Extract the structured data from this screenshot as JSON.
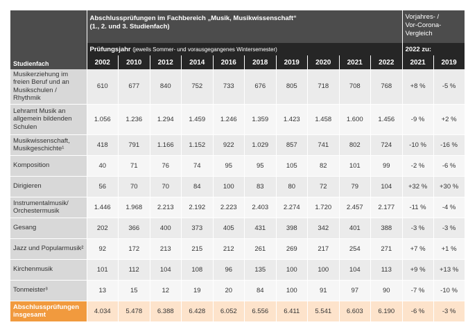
{
  "header": {
    "title": "Abschlussprüfungen im Fachbereich „Musik, Musikwissenschaft“",
    "subtitle": "(1., 2. und 3. Studienfach)",
    "comparison_title": "Vorjahres- / Vor-Corona-Vergleich",
    "year_label": "Prüfungsjahr",
    "year_note": "(jeweils Sommer- und vorausgegangenes Wintersemester)",
    "comparison_label": "2022 zu:",
    "row_header": "Studienfach",
    "years": [
      "2002",
      "2010",
      "2012",
      "2014",
      "2016",
      "2018",
      "2019",
      "2020",
      "2021",
      "2022"
    ],
    "comparison_years": [
      "2021",
      "2019"
    ]
  },
  "table": {
    "rows": [
      {
        "label": "Musikerziehung im freien Beruf und an Musikschulen / Rhythmik",
        "values": [
          "610",
          "677",
          "840",
          "752",
          "733",
          "676",
          "805",
          "718",
          "708",
          "768"
        ],
        "comparison": [
          "+8 %",
          "-5 %"
        ]
      },
      {
        "label": "Lehramt Musik an allgemein bildenden Schulen",
        "values": [
          "1.056",
          "1.236",
          "1.294",
          "1.459",
          "1.246",
          "1.359",
          "1.423",
          "1.458",
          "1.600",
          "1.456"
        ],
        "comparison": [
          "-9 %",
          "+2 %"
        ]
      },
      {
        "label": "Musikwissenschaft, Musikgeschichte¹",
        "values": [
          "418",
          "791",
          "1.166",
          "1.152",
          "922",
          "1.029",
          "857",
          "741",
          "802",
          "724"
        ],
        "comparison": [
          "-10 %",
          "-16 %"
        ]
      },
      {
        "label": "Komposition",
        "values": [
          "40",
          "71",
          "76",
          "74",
          "95",
          "95",
          "105",
          "82",
          "101",
          "99"
        ],
        "comparison": [
          "-2 %",
          "-6 %"
        ]
      },
      {
        "label": "Dirigieren",
        "values": [
          "56",
          "70",
          "70",
          "84",
          "100",
          "83",
          "80",
          "72",
          "79",
          "104"
        ],
        "comparison": [
          "+32 %",
          "+30 %"
        ]
      },
      {
        "label": "Instrumentalmusik/ Orchestermusik",
        "values": [
          "1.446",
          "1.968",
          "2.213",
          "2.192",
          "2.223",
          "2.403",
          "2.274",
          "1.720",
          "2.457",
          "2.177"
        ],
        "comparison": [
          "-11 %",
          "-4 %"
        ]
      },
      {
        "label": "Gesang",
        "values": [
          "202",
          "366",
          "400",
          "373",
          "405",
          "431",
          "398",
          "342",
          "401",
          "388"
        ],
        "comparison": [
          "-3 %",
          "-3 %"
        ]
      },
      {
        "label": "Jazz und Popularmusik²",
        "values": [
          "92",
          "172",
          "213",
          "215",
          "212",
          "261",
          "269",
          "217",
          "254",
          "271"
        ],
        "comparison": [
          "+7 %",
          "+1 %"
        ]
      },
      {
        "label": "Kirchenmusik",
        "values": [
          "101",
          "112",
          "104",
          "108",
          "96",
          "135",
          "100",
          "100",
          "104",
          "113"
        ],
        "comparison": [
          "+9 %",
          "+13 %"
        ]
      },
      {
        "label": "Tonmeister³",
        "values": [
          "13",
          "15",
          "12",
          "19",
          "20",
          "84",
          "100",
          "91",
          "97",
          "90"
        ],
        "comparison": [
          "-7 %",
          "-10 %"
        ]
      }
    ],
    "total": {
      "label": "Abschlussprüfungen insgesamt",
      "values": [
        "4.034",
        "5.478",
        "6.388",
        "6.428",
        "6.052",
        "6.556",
        "6.411",
        "5.541",
        "6.603",
        "6.190"
      ],
      "comparison": [
        "-6 %",
        "-3 %"
      ]
    }
  }
}
